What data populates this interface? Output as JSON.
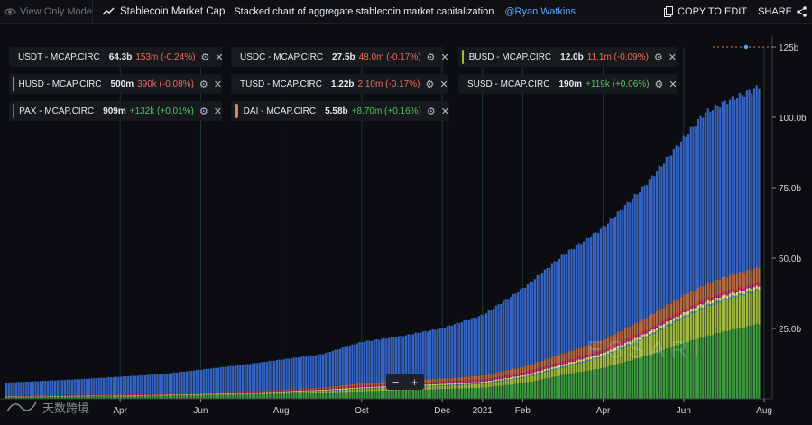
{
  "toolbar": {
    "view_mode": "View Only Mode",
    "title": "Stablecoin Market Cap",
    "description": "Stacked chart of aggregate stablecoin market capitalization",
    "author": "@Ryan Watkins",
    "copy_label": "COPY TO EDIT",
    "share_label": "SHARE"
  },
  "legend": [
    {
      "name": "USDT - MCAP.CIRC",
      "value": "64.3b",
      "change": "153m (-0.24%)",
      "dir": "neg",
      "color": "#3f6fd1"
    },
    {
      "name": "USDC - MCAP.CIRC",
      "value": "27.5b",
      "change": "48.0m (-0.17%)",
      "dir": "neg",
      "color": "#4fa14e"
    },
    {
      "name": "BUSD - MCAP.CIRC",
      "value": "12.0b",
      "change": "11.1m (-0.09%)",
      "dir": "neg",
      "color": "#9fba3e"
    },
    {
      "name": "HUSD - MCAP.CIRC",
      "value": "500m",
      "change": "390k (-0.08%)",
      "dir": "neg",
      "color": "#4aa3d9"
    },
    {
      "name": "TUSD - MCAP.CIRC",
      "value": "1.22b",
      "change": "2.10m (-0.17%)",
      "dir": "neg",
      "color": "#e8dd7a"
    },
    {
      "name": "SUSD - MCAP.CIRC",
      "value": "190m",
      "change": "+119k (+0.06%)",
      "dir": "pos",
      "color": "#8e3fa0"
    },
    {
      "name": "PAX - MCAP.CIRC",
      "value": "909m",
      "change": "+132k (+0.01%)",
      "dir": "pos",
      "color": "#e0307a"
    },
    {
      "name": "DAI - MCAP.CIRC",
      "value": "5.58b",
      "change": "+8.70m (+0.16%)",
      "dir": "pos",
      "color": "#d8895a"
    }
  ],
  "zoom": {
    "minus": "−",
    "plus": "+"
  },
  "watermark": {
    "text": "天数跨境"
  },
  "brand_watermark": "ESSARI",
  "chart_data": {
    "type": "area",
    "title": "Stablecoin Market Cap",
    "stacked": true,
    "y_unit": "b",
    "ylim": [
      0,
      125
    ],
    "y_ticks": [
      "25.0b",
      "50.0b",
      "75.0b",
      "100.0b",
      "125b"
    ],
    "y_tick_values": [
      25,
      50,
      75,
      100,
      125
    ],
    "x_ticks": [
      "Apr",
      "Jun",
      "Aug",
      "Oct",
      "Dec",
      "2021",
      "Feb",
      "Apr",
      "Jun",
      "Aug"
    ],
    "x_tick_months": [
      3,
      5,
      7,
      9,
      11,
      12,
      13,
      15,
      17,
      19
    ],
    "x_range_months": [
      0.15,
      19.2
    ],
    "months": [
      0,
      2,
      4,
      6,
      8,
      9,
      10,
      11,
      12,
      13,
      14,
      15,
      16,
      17,
      17.5,
      18,
      19
    ],
    "series": [
      {
        "name": "USDC",
        "color": "#3e9a40",
        "values": [
          0.45,
          0.7,
          0.9,
          1.4,
          2.1,
          2.6,
          3.0,
          3.4,
          3.9,
          5.5,
          8.5,
          11,
          15,
          20,
          22,
          24,
          27
        ]
      },
      {
        "name": "BUSD",
        "color": "#9fba3e",
        "values": [
          0.1,
          0.15,
          0.2,
          0.3,
          0.6,
          0.9,
          1.1,
          1.2,
          1.4,
          2.0,
          2.7,
          4.0,
          6.5,
          9.0,
          10.5,
          11.2,
          12.0
        ]
      },
      {
        "name": "HUSD",
        "color": "#4aa3d9",
        "values": [
          0.05,
          0.06,
          0.08,
          0.12,
          0.18,
          0.2,
          0.22,
          0.25,
          0.28,
          0.3,
          0.35,
          0.4,
          0.45,
          0.5,
          0.5,
          0.5,
          0.5
        ]
      },
      {
        "name": "TUSD",
        "color": "#e8dd7a",
        "values": [
          0.15,
          0.16,
          0.2,
          0.25,
          0.35,
          0.4,
          0.42,
          0.45,
          0.5,
          0.6,
          0.8,
          1.0,
          1.1,
          1.2,
          1.2,
          1.2,
          1.22
        ]
      },
      {
        "name": "SUSD",
        "color": "#8e3fa0",
        "values": [
          0.02,
          0.03,
          0.04,
          0.06,
          0.08,
          0.1,
          0.11,
          0.12,
          0.13,
          0.14,
          0.15,
          0.16,
          0.17,
          0.18,
          0.19,
          0.19,
          0.19
        ]
      },
      {
        "name": "PAX",
        "color": "#e0307a",
        "values": [
          0.2,
          0.22,
          0.25,
          0.3,
          0.4,
          0.5,
          0.55,
          0.6,
          0.65,
          0.7,
          0.75,
          0.8,
          0.85,
          0.9,
          0.9,
          0.9,
          0.91
        ]
      },
      {
        "name": "DAI",
        "color": "#b86a45",
        "values": [
          0.08,
          0.09,
          0.1,
          0.12,
          0.4,
          0.8,
          1.0,
          1.2,
          1.5,
          2.2,
          3.0,
          3.7,
          4.5,
          5.2,
          5.3,
          5.4,
          5.58
        ]
      },
      {
        "name": "USDT",
        "color": "#3564c4",
        "values": [
          4.6,
          5.6,
          7.0,
          9.5,
          11.8,
          14.8,
          16.0,
          18.0,
          21.5,
          28,
          35,
          40,
          47,
          56,
          61,
          62,
          64.3
        ]
      }
    ],
    "vertical_gridlines": true
  }
}
